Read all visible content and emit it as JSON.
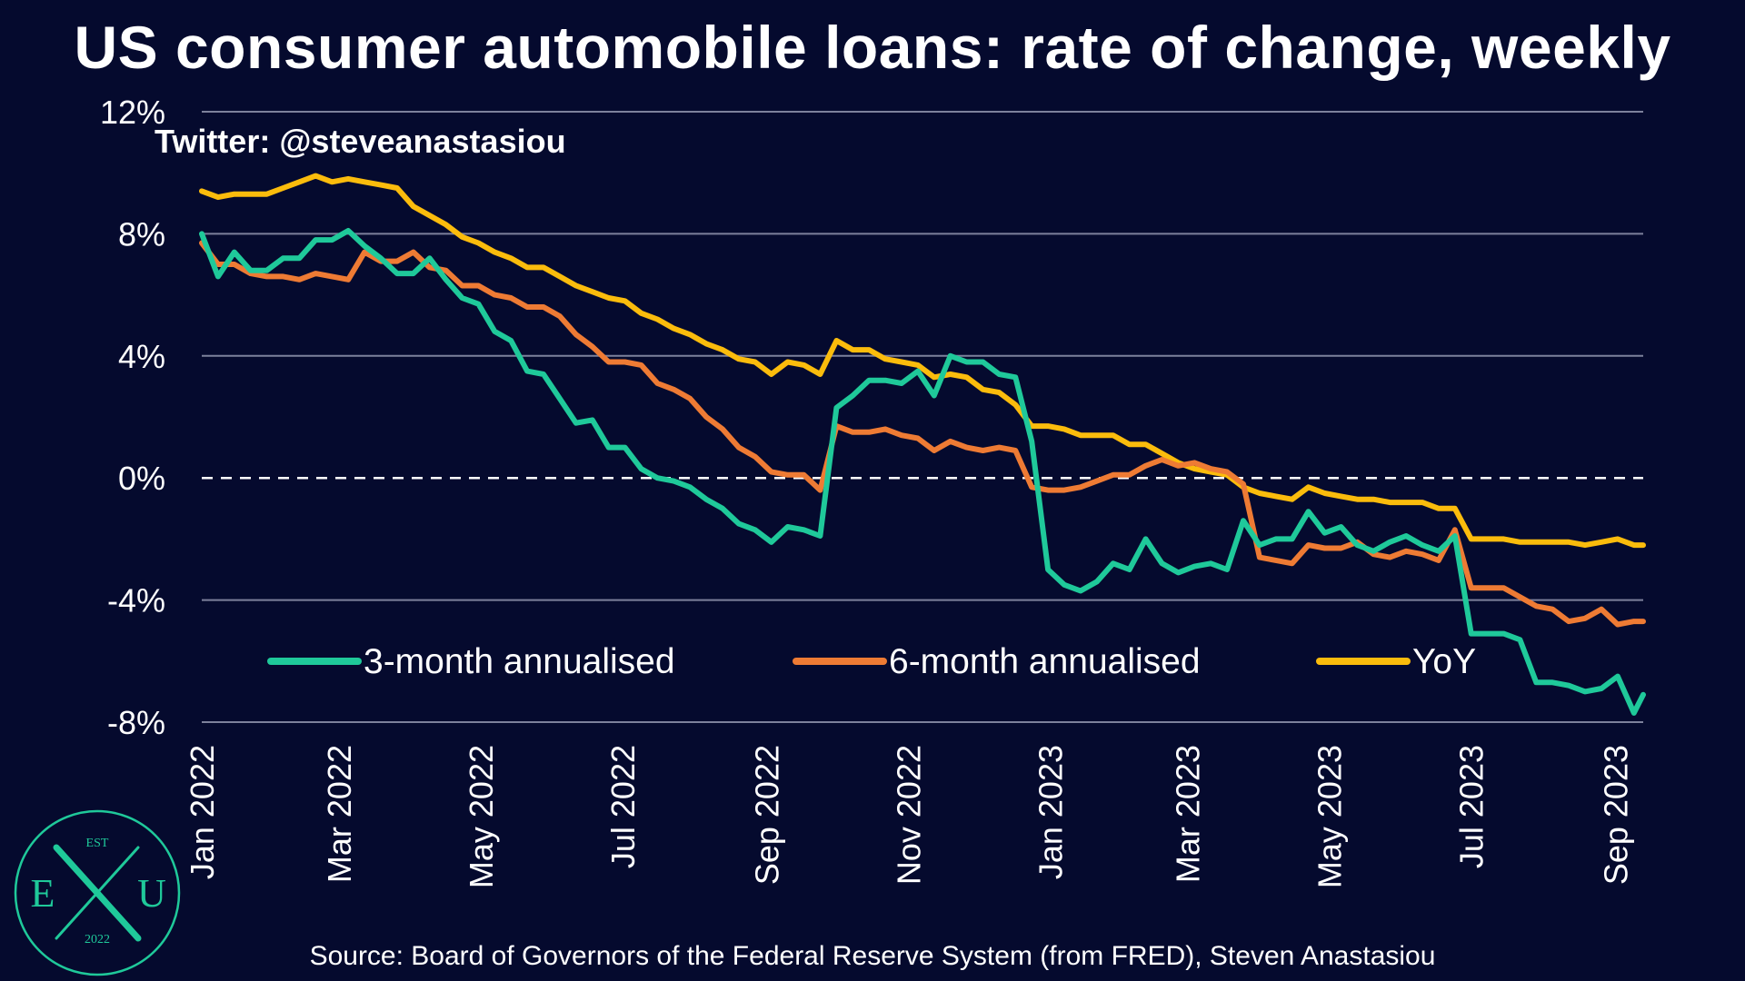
{
  "chart_data": {
    "type": "line",
    "title": "US consumer automobile loans: rate of change, weekly",
    "ylim": [
      -8,
      12
    ],
    "y_ticks": [
      "12%",
      "8%",
      "4%",
      "0%",
      "-4%",
      "-8%"
    ],
    "x_ticks": [
      "Jan 2022",
      "Mar 2022",
      "May 2022",
      "Jul 2022",
      "Sep 2022",
      "Nov 2022",
      "Jan 2023",
      "Mar 2023",
      "May 2023",
      "Jul 2023",
      "Sep 2023"
    ],
    "x_tick_dates": [
      "2022-01-01",
      "2022-03-01",
      "2022-05-01",
      "2022-07-01",
      "2022-09-01",
      "2022-11-01",
      "2023-01-01",
      "2023-03-01",
      "2023-05-01",
      "2023-07-01",
      "2023-09-01"
    ],
    "x_range": [
      "2022-01-01",
      "2023-09-13"
    ],
    "grid": "horizontal",
    "zero_line": "dashed",
    "legend_position": "bottom",
    "series": [
      {
        "name": "3-month annualised",
        "color": "#1fc99a",
        "points": [
          [
            "2022-01-01",
            8.0
          ],
          [
            "2022-01-08",
            6.6
          ],
          [
            "2022-01-15",
            7.4
          ],
          [
            "2022-01-22",
            6.8
          ],
          [
            "2022-01-29",
            6.8
          ],
          [
            "2022-02-05",
            7.2
          ],
          [
            "2022-02-12",
            7.2
          ],
          [
            "2022-02-19",
            7.8
          ],
          [
            "2022-02-26",
            7.8
          ],
          [
            "2022-03-05",
            8.1
          ],
          [
            "2022-03-12",
            7.6
          ],
          [
            "2022-03-19",
            7.2
          ],
          [
            "2022-03-26",
            6.7
          ],
          [
            "2022-04-02",
            6.7
          ],
          [
            "2022-04-09",
            7.2
          ],
          [
            "2022-04-16",
            6.5
          ],
          [
            "2022-04-23",
            5.9
          ],
          [
            "2022-04-30",
            5.7
          ],
          [
            "2022-05-07",
            4.8
          ],
          [
            "2022-05-14",
            4.5
          ],
          [
            "2022-05-21",
            3.5
          ],
          [
            "2022-05-28",
            3.4
          ],
          [
            "2022-06-04",
            2.6
          ],
          [
            "2022-06-11",
            1.8
          ],
          [
            "2022-06-18",
            1.9
          ],
          [
            "2022-06-25",
            1.0
          ],
          [
            "2022-07-02",
            1.0
          ],
          [
            "2022-07-09",
            0.3
          ],
          [
            "2022-07-16",
            0.0
          ],
          [
            "2022-07-23",
            -0.1
          ],
          [
            "2022-07-30",
            -0.3
          ],
          [
            "2022-08-06",
            -0.7
          ],
          [
            "2022-08-13",
            -1.0
          ],
          [
            "2022-08-20",
            -1.5
          ],
          [
            "2022-08-27",
            -1.7
          ],
          [
            "2022-09-03",
            -2.1
          ],
          [
            "2022-09-10",
            -1.6
          ],
          [
            "2022-09-17",
            -1.7
          ],
          [
            "2022-09-24",
            -1.9
          ],
          [
            "2022-10-01",
            2.3
          ],
          [
            "2022-10-08",
            2.7
          ],
          [
            "2022-10-15",
            3.2
          ],
          [
            "2022-10-22",
            3.2
          ],
          [
            "2022-10-29",
            3.1
          ],
          [
            "2022-11-05",
            3.5
          ],
          [
            "2022-11-12",
            2.7
          ],
          [
            "2022-11-19",
            4.0
          ],
          [
            "2022-11-26",
            3.8
          ],
          [
            "2022-12-03",
            3.8
          ],
          [
            "2022-12-10",
            3.4
          ],
          [
            "2022-12-17",
            3.3
          ],
          [
            "2022-12-24",
            1.2
          ],
          [
            "2022-12-31",
            -3.0
          ],
          [
            "2023-01-07",
            -3.5
          ],
          [
            "2023-01-14",
            -3.7
          ],
          [
            "2023-01-21",
            -3.4
          ],
          [
            "2023-01-28",
            -2.8
          ],
          [
            "2023-02-04",
            -3.0
          ],
          [
            "2023-02-11",
            -2.0
          ],
          [
            "2023-02-18",
            -2.8
          ],
          [
            "2023-02-25",
            -3.1
          ],
          [
            "2023-03-04",
            -2.9
          ],
          [
            "2023-03-11",
            -2.8
          ],
          [
            "2023-03-18",
            -3.0
          ],
          [
            "2023-03-25",
            -1.4
          ],
          [
            "2023-04-01",
            -2.2
          ],
          [
            "2023-04-08",
            -2.0
          ],
          [
            "2023-04-15",
            -2.0
          ],
          [
            "2023-04-22",
            -1.1
          ],
          [
            "2023-04-29",
            -1.8
          ],
          [
            "2023-05-06",
            -1.6
          ],
          [
            "2023-05-13",
            -2.2
          ],
          [
            "2023-05-20",
            -2.4
          ],
          [
            "2023-05-27",
            -2.1
          ],
          [
            "2023-06-03",
            -1.9
          ],
          [
            "2023-06-10",
            -2.2
          ],
          [
            "2023-06-17",
            -2.4
          ],
          [
            "2023-06-24",
            -1.9
          ],
          [
            "2023-07-01",
            -5.1
          ],
          [
            "2023-07-08",
            -5.1
          ],
          [
            "2023-07-15",
            -5.1
          ],
          [
            "2023-07-22",
            -5.3
          ],
          [
            "2023-07-29",
            -6.7
          ],
          [
            "2023-08-05",
            -6.7
          ],
          [
            "2023-08-12",
            -6.8
          ],
          [
            "2023-08-19",
            -7.0
          ],
          [
            "2023-08-26",
            -6.9
          ],
          [
            "2023-09-02",
            -6.5
          ],
          [
            "2023-09-09",
            -7.7
          ],
          [
            "2023-09-13",
            -7.1
          ]
        ]
      },
      {
        "name": "6-month annualised",
        "color": "#ee7b34",
        "points": [
          [
            "2022-01-01",
            7.7
          ],
          [
            "2022-01-08",
            7.0
          ],
          [
            "2022-01-15",
            7.0
          ],
          [
            "2022-01-22",
            6.7
          ],
          [
            "2022-01-29",
            6.6
          ],
          [
            "2022-02-05",
            6.6
          ],
          [
            "2022-02-12",
            6.5
          ],
          [
            "2022-02-19",
            6.7
          ],
          [
            "2022-02-26",
            6.6
          ],
          [
            "2022-03-05",
            6.5
          ],
          [
            "2022-03-12",
            7.4
          ],
          [
            "2022-03-19",
            7.1
          ],
          [
            "2022-03-26",
            7.1
          ],
          [
            "2022-04-02",
            7.4
          ],
          [
            "2022-04-09",
            6.9
          ],
          [
            "2022-04-16",
            6.8
          ],
          [
            "2022-04-23",
            6.3
          ],
          [
            "2022-04-30",
            6.3
          ],
          [
            "2022-05-07",
            6.0
          ],
          [
            "2022-05-14",
            5.9
          ],
          [
            "2022-05-21",
            5.6
          ],
          [
            "2022-05-28",
            5.6
          ],
          [
            "2022-06-04",
            5.3
          ],
          [
            "2022-06-11",
            4.7
          ],
          [
            "2022-06-18",
            4.3
          ],
          [
            "2022-06-25",
            3.8
          ],
          [
            "2022-07-02",
            3.8
          ],
          [
            "2022-07-09",
            3.7
          ],
          [
            "2022-07-16",
            3.1
          ],
          [
            "2022-07-23",
            2.9
          ],
          [
            "2022-07-30",
            2.6
          ],
          [
            "2022-08-06",
            2.0
          ],
          [
            "2022-08-13",
            1.6
          ],
          [
            "2022-08-20",
            1.0
          ],
          [
            "2022-08-27",
            0.7
          ],
          [
            "2022-09-03",
            0.2
          ],
          [
            "2022-09-10",
            0.1
          ],
          [
            "2022-09-17",
            0.1
          ],
          [
            "2022-09-24",
            -0.4
          ],
          [
            "2022-10-01",
            1.7
          ],
          [
            "2022-10-08",
            1.5
          ],
          [
            "2022-10-15",
            1.5
          ],
          [
            "2022-10-22",
            1.6
          ],
          [
            "2022-10-29",
            1.4
          ],
          [
            "2022-11-05",
            1.3
          ],
          [
            "2022-11-12",
            0.9
          ],
          [
            "2022-11-19",
            1.2
          ],
          [
            "2022-11-26",
            1.0
          ],
          [
            "2022-12-03",
            0.9
          ],
          [
            "2022-12-10",
            1.0
          ],
          [
            "2022-12-17",
            0.9
          ],
          [
            "2022-12-24",
            -0.3
          ],
          [
            "2022-12-31",
            -0.4
          ],
          [
            "2023-01-07",
            -0.4
          ],
          [
            "2023-01-14",
            -0.3
          ],
          [
            "2023-01-21",
            -0.1
          ],
          [
            "2023-01-28",
            0.1
          ],
          [
            "2023-02-04",
            0.1
          ],
          [
            "2023-02-11",
            0.4
          ],
          [
            "2023-02-18",
            0.6
          ],
          [
            "2023-02-25",
            0.4
          ],
          [
            "2023-03-04",
            0.5
          ],
          [
            "2023-03-11",
            0.3
          ],
          [
            "2023-03-18",
            0.2
          ],
          [
            "2023-03-25",
            -0.2
          ],
          [
            "2023-04-01",
            -2.6
          ],
          [
            "2023-04-08",
            -2.7
          ],
          [
            "2023-04-15",
            -2.8
          ],
          [
            "2023-04-22",
            -2.2
          ],
          [
            "2023-04-29",
            -2.3
          ],
          [
            "2023-05-06",
            -2.3
          ],
          [
            "2023-05-13",
            -2.1
          ],
          [
            "2023-05-20",
            -2.5
          ],
          [
            "2023-05-27",
            -2.6
          ],
          [
            "2023-06-03",
            -2.4
          ],
          [
            "2023-06-10",
            -2.5
          ],
          [
            "2023-06-17",
            -2.7
          ],
          [
            "2023-06-24",
            -1.7
          ],
          [
            "2023-07-01",
            -3.6
          ],
          [
            "2023-07-08",
            -3.6
          ],
          [
            "2023-07-15",
            -3.6
          ],
          [
            "2023-07-22",
            -3.9
          ],
          [
            "2023-07-29",
            -4.2
          ],
          [
            "2023-08-05",
            -4.3
          ],
          [
            "2023-08-12",
            -4.7
          ],
          [
            "2023-08-19",
            -4.6
          ],
          [
            "2023-08-26",
            -4.3
          ],
          [
            "2023-09-02",
            -4.8
          ],
          [
            "2023-09-09",
            -4.7
          ],
          [
            "2023-09-13",
            -4.7
          ]
        ]
      },
      {
        "name": "YoY",
        "color": "#fbbc0c",
        "points": [
          [
            "2022-01-01",
            9.4
          ],
          [
            "2022-01-08",
            9.2
          ],
          [
            "2022-01-15",
            9.3
          ],
          [
            "2022-01-22",
            9.3
          ],
          [
            "2022-01-29",
            9.3
          ],
          [
            "2022-02-05",
            9.5
          ],
          [
            "2022-02-12",
            9.7
          ],
          [
            "2022-02-19",
            9.9
          ],
          [
            "2022-02-26",
            9.7
          ],
          [
            "2022-03-05",
            9.8
          ],
          [
            "2022-03-12",
            9.7
          ],
          [
            "2022-03-19",
            9.6
          ],
          [
            "2022-03-26",
            9.5
          ],
          [
            "2022-04-02",
            8.9
          ],
          [
            "2022-04-09",
            8.6
          ],
          [
            "2022-04-16",
            8.3
          ],
          [
            "2022-04-23",
            7.9
          ],
          [
            "2022-04-30",
            7.7
          ],
          [
            "2022-05-07",
            7.4
          ],
          [
            "2022-05-14",
            7.2
          ],
          [
            "2022-05-21",
            6.9
          ],
          [
            "2022-05-28",
            6.9
          ],
          [
            "2022-06-04",
            6.6
          ],
          [
            "2022-06-11",
            6.3
          ],
          [
            "2022-06-18",
            6.1
          ],
          [
            "2022-06-25",
            5.9
          ],
          [
            "2022-07-02",
            5.8
          ],
          [
            "2022-07-09",
            5.4
          ],
          [
            "2022-07-16",
            5.2
          ],
          [
            "2022-07-23",
            4.9
          ],
          [
            "2022-07-30",
            4.7
          ],
          [
            "2022-08-06",
            4.4
          ],
          [
            "2022-08-13",
            4.2
          ],
          [
            "2022-08-20",
            3.9
          ],
          [
            "2022-08-27",
            3.8
          ],
          [
            "2022-09-03",
            3.4
          ],
          [
            "2022-09-10",
            3.8
          ],
          [
            "2022-09-17",
            3.7
          ],
          [
            "2022-09-24",
            3.4
          ],
          [
            "2022-10-01",
            4.5
          ],
          [
            "2022-10-08",
            4.2
          ],
          [
            "2022-10-15",
            4.2
          ],
          [
            "2022-10-22",
            3.9
          ],
          [
            "2022-10-29",
            3.8
          ],
          [
            "2022-11-05",
            3.7
          ],
          [
            "2022-11-12",
            3.3
          ],
          [
            "2022-11-19",
            3.4
          ],
          [
            "2022-11-26",
            3.3
          ],
          [
            "2022-12-03",
            2.9
          ],
          [
            "2022-12-10",
            2.8
          ],
          [
            "2022-12-17",
            2.4
          ],
          [
            "2022-12-24",
            1.7
          ],
          [
            "2022-12-31",
            1.7
          ],
          [
            "2023-01-07",
            1.6
          ],
          [
            "2023-01-14",
            1.4
          ],
          [
            "2023-01-21",
            1.4
          ],
          [
            "2023-01-28",
            1.4
          ],
          [
            "2023-02-04",
            1.1
          ],
          [
            "2023-02-11",
            1.1
          ],
          [
            "2023-02-18",
            0.8
          ],
          [
            "2023-02-25",
            0.5
          ],
          [
            "2023-03-04",
            0.3
          ],
          [
            "2023-03-11",
            0.2
          ],
          [
            "2023-03-18",
            0.1
          ],
          [
            "2023-03-25",
            -0.3
          ],
          [
            "2023-04-01",
            -0.5
          ],
          [
            "2023-04-08",
            -0.6
          ],
          [
            "2023-04-15",
            -0.7
          ],
          [
            "2023-04-22",
            -0.3
          ],
          [
            "2023-04-29",
            -0.5
          ],
          [
            "2023-05-06",
            -0.6
          ],
          [
            "2023-05-13",
            -0.7
          ],
          [
            "2023-05-20",
            -0.7
          ],
          [
            "2023-05-27",
            -0.8
          ],
          [
            "2023-06-03",
            -0.8
          ],
          [
            "2023-06-10",
            -0.8
          ],
          [
            "2023-06-17",
            -1.0
          ],
          [
            "2023-06-24",
            -1.0
          ],
          [
            "2023-07-01",
            -2.0
          ],
          [
            "2023-07-08",
            -2.0
          ],
          [
            "2023-07-15",
            -2.0
          ],
          [
            "2023-07-22",
            -2.1
          ],
          [
            "2023-07-29",
            -2.1
          ],
          [
            "2023-08-05",
            -2.1
          ],
          [
            "2023-08-12",
            -2.1
          ],
          [
            "2023-08-19",
            -2.2
          ],
          [
            "2023-08-26",
            -2.1
          ],
          [
            "2023-09-02",
            -2.0
          ],
          [
            "2023-09-09",
            -2.2
          ],
          [
            "2023-09-13",
            -2.2
          ]
        ]
      }
    ]
  },
  "watermark": "Twitter: @steveanastasiou",
  "source": "Source: Board of Governors of the Federal Reserve System (from FRED), Steven Anastasiou",
  "logo": {
    "top": "EST",
    "left": "E",
    "right": "U",
    "bottom": "2022",
    "color": "#1fc99a"
  }
}
